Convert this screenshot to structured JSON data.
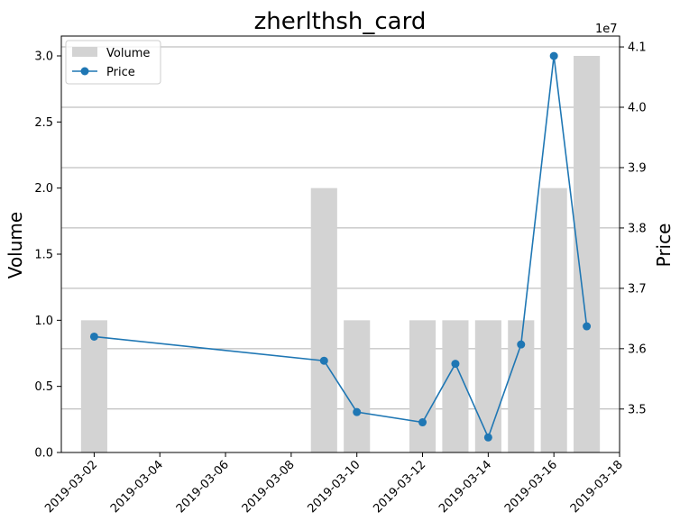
{
  "chart_data": {
    "type": "bar+line",
    "title": "zherlthsh_card",
    "xlabel": "",
    "ylabel": "Volume",
    "ylabel_right": "Price",
    "right_axis_offset_text": "1e7",
    "x": [
      "2019-03-02",
      "2019-03-09",
      "2019-03-10",
      "2019-03-12",
      "2019-03-13",
      "2019-03-14",
      "2019-03-15",
      "2019-03-16",
      "2019-03-17"
    ],
    "xticks": [
      "2019-03-02",
      "2019-03-04",
      "2019-03-06",
      "2019-03-08",
      "2019-03-10",
      "2019-03-12",
      "2019-03-14",
      "2019-03-16",
      "2019-03-18"
    ],
    "xlim": [
      "2019-03-01",
      "2019-03-18"
    ],
    "ylim": [
      0,
      3.15
    ],
    "yticks": [
      "0.0",
      "0.5",
      "1.0",
      "1.5",
      "2.0",
      "2.5",
      "3.0"
    ],
    "ylim_right": [
      34.28,
      41.18
    ],
    "yticks_right": [
      "3.5",
      "3.6",
      "3.7",
      "3.8",
      "3.9",
      "4.0",
      "4.1"
    ],
    "series": [
      {
        "name": "Volume",
        "kind": "bar",
        "color": "#d3d3d3",
        "values": [
          1,
          2,
          1,
          1,
          1,
          1,
          1,
          2,
          3
        ]
      },
      {
        "name": "Price",
        "kind": "line",
        "axis": "right",
        "color": "#1f77b4",
        "values": [
          36.2,
          35.8,
          34.95,
          34.78,
          35.75,
          34.53,
          36.07,
          40.85,
          36.37
        ]
      }
    ],
    "grid": "horizontal (right axis)",
    "legend": "upper-left"
  }
}
